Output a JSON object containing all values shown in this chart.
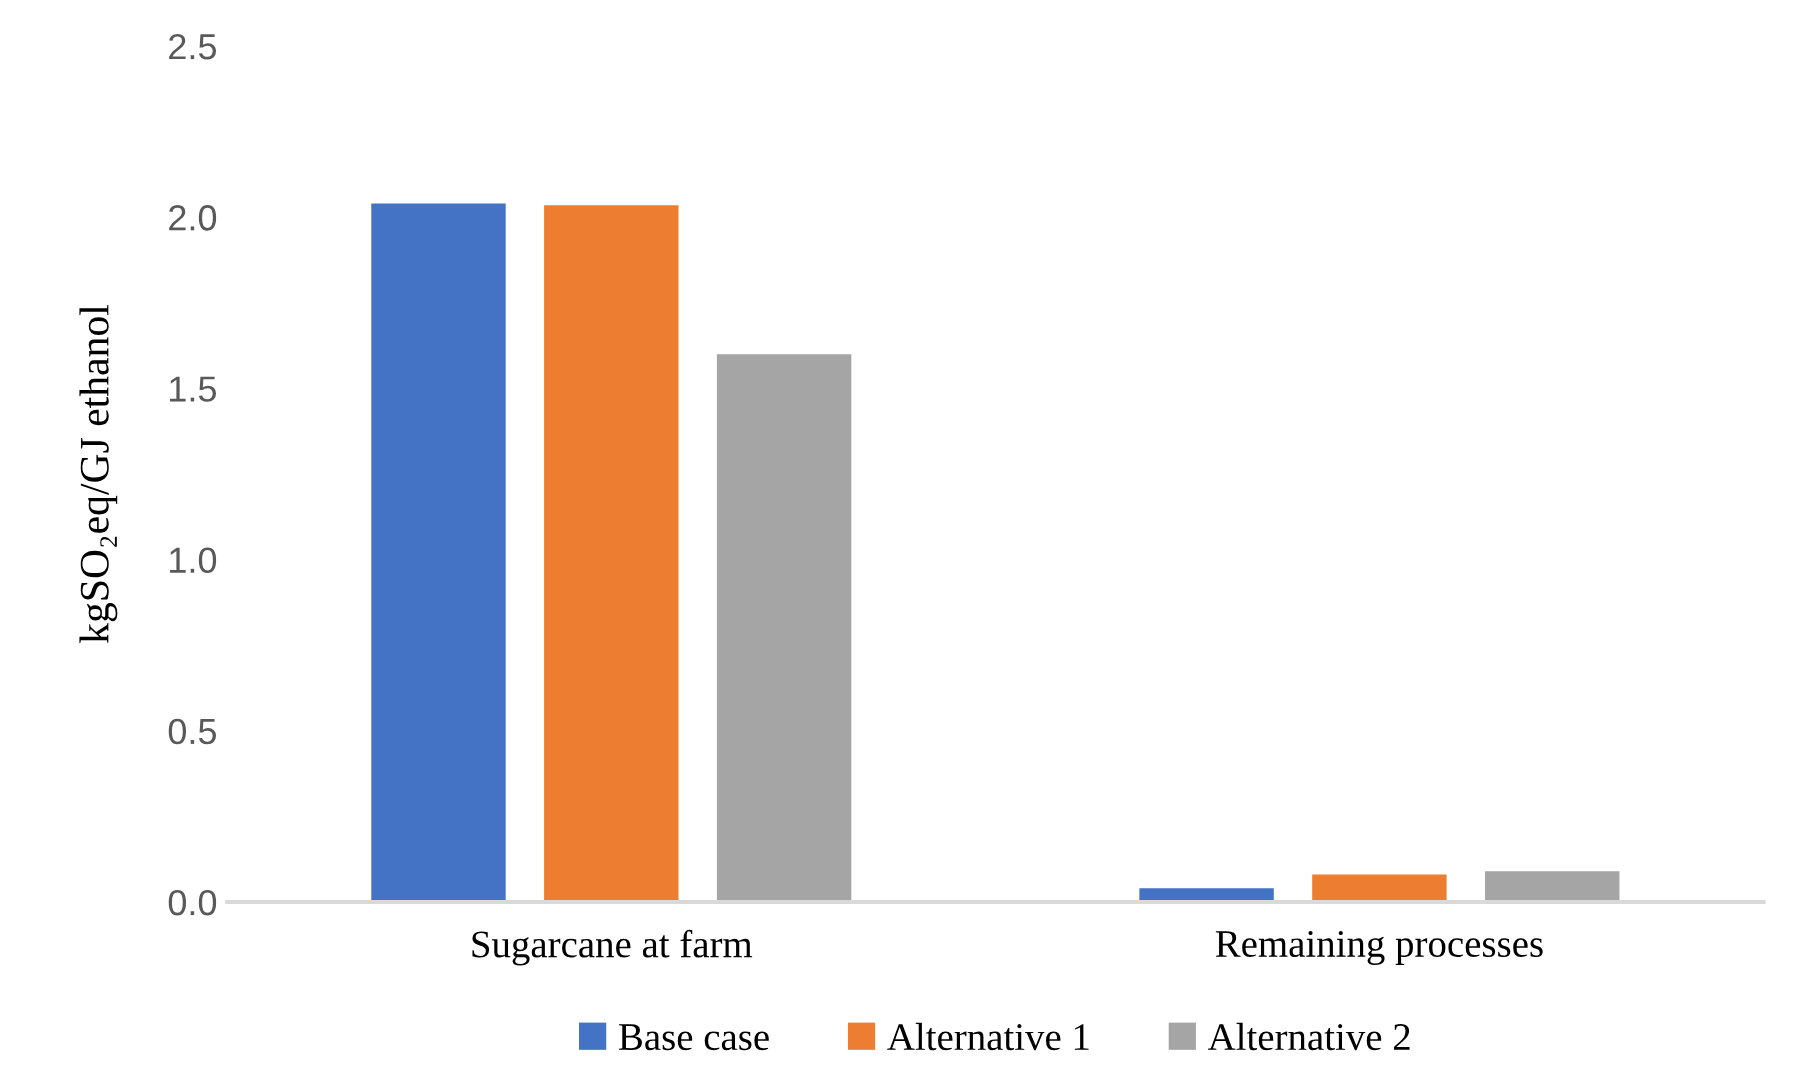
{
  "chart_data": {
    "type": "bar",
    "ylabel": "kgSO₂eq/GJ ethanol",
    "categories": [
      "Sugarcane at farm",
      "Remaining processes"
    ],
    "series": [
      {
        "name": "Base case",
        "color": "#4472c4",
        "values": [
          2.04,
          0.04
        ]
      },
      {
        "name": "Alternative 1",
        "color": "#ed7d31",
        "values": [
          2.035,
          0.08
        ]
      },
      {
        "name": "Alternative 2",
        "color": "#a5a5a5",
        "values": [
          1.6,
          0.09
        ]
      }
    ],
    "ylim": [
      0,
      2.5
    ],
    "yticks": [
      {
        "value": 0,
        "label": "0.0"
      },
      {
        "value": 0.5,
        "label": "0.5"
      },
      {
        "value": 1,
        "label": "1.0"
      },
      {
        "value": 1.5,
        "label": "1.5"
      },
      {
        "value": 2,
        "label": "2.0"
      },
      {
        "value": 2.5,
        "label": "2.5"
      }
    ],
    "grid": false,
    "legend": "bottom"
  }
}
